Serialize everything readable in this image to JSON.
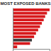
{
  "chart_data": {
    "type": "bar",
    "orientation": "horizontal",
    "title": "MOST EXPOSED BANKS",
    "categories": [
      null,
      null,
      null,
      null,
      null,
      null,
      null,
      null,
      null,
      null,
      null,
      null
    ],
    "values": [
      100,
      93,
      88,
      84,
      79,
      74,
      69,
      63,
      58,
      52,
      47,
      12
    ],
    "colors": [
      "#d7191c",
      "#d7191c",
      "#d7191c",
      "#d7191c",
      "#d7191c",
      "#d7191c",
      "#d7191c",
      "#d7191c",
      "#d7191c",
      "#3a3a3a",
      "#d7191c",
      "#d7191c"
    ],
    "xlim": [
      0,
      100
    ],
    "tick_labels": false,
    "grid": false
  }
}
